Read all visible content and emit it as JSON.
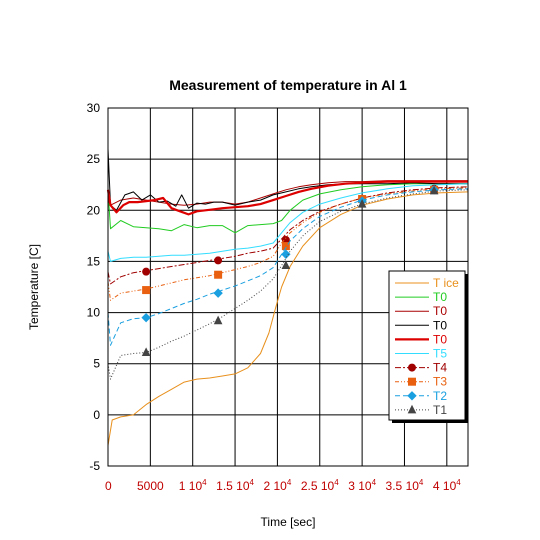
{
  "chart_data": {
    "type": "line",
    "title": "Measurement of temperature in Al 1",
    "xlabel": "Time [sec]",
    "ylabel": "Temperature [C]",
    "xlim": [
      0,
      42500
    ],
    "ylim": [
      -5,
      30
    ],
    "grid": true,
    "legend_position": "right",
    "x_ticks": [
      {
        "value": 0,
        "label": "0",
        "exp": ""
      },
      {
        "value": 5000,
        "label": "5000",
        "exp": ""
      },
      {
        "value": 10000,
        "label": "1 10",
        "exp": "4"
      },
      {
        "value": 15000,
        "label": "1.5 10",
        "exp": "4"
      },
      {
        "value": 20000,
        "label": "2 10",
        "exp": "4"
      },
      {
        "value": 25000,
        "label": "2.5 10",
        "exp": "4"
      },
      {
        "value": 30000,
        "label": "3 10",
        "exp": "4"
      },
      {
        "value": 35000,
        "label": "3.5 10",
        "exp": "4"
      },
      {
        "value": 40000,
        "label": "4 10",
        "exp": "4"
      }
    ],
    "y_ticks": [
      -5,
      0,
      5,
      10,
      15,
      20,
      25,
      30
    ],
    "series": [
      {
        "name": "T ice",
        "color": "#e8901c",
        "width": 1,
        "dash": "",
        "marker": "",
        "x": [
          0,
          500,
          1500,
          3000,
          4500,
          6000,
          7500,
          9000,
          10500,
          12000,
          13500,
          15000,
          16500,
          18000,
          19000,
          19800,
          20500,
          21500,
          23000,
          25000,
          27500,
          30000,
          33000,
          36000,
          39000,
          42500
        ],
        "y": [
          -3,
          -0.5,
          -0.2,
          0,
          1,
          1.8,
          2.5,
          3.2,
          3.5,
          3.6,
          3.8,
          4.0,
          4.6,
          6.0,
          8.0,
          10.5,
          12.5,
          14.5,
          16.5,
          18.3,
          19.6,
          20.5,
          21.1,
          21.5,
          21.7,
          21.8
        ]
      },
      {
        "name": "T0",
        "color": "#22cc22",
        "width": 1,
        "dash": "",
        "marker": "",
        "x": [
          0,
          300,
          1500,
          3000,
          4500,
          6000,
          7500,
          9000,
          10500,
          12000,
          13500,
          15000,
          16500,
          18000,
          19500,
          20500,
          21500,
          23000,
          25000,
          27500,
          30000,
          33000,
          36000,
          39000,
          42500
        ],
        "y": [
          22,
          18.2,
          19.0,
          18.4,
          18.3,
          18.2,
          18.0,
          18.6,
          18.3,
          18.5,
          18.5,
          17.8,
          18.5,
          18.6,
          18.7,
          19.0,
          20.0,
          21.0,
          21.6,
          22.0,
          22.3,
          22.5,
          22.6,
          22.6,
          22.6
        ]
      },
      {
        "name": "T0",
        "color": "#aa0000",
        "width": 1,
        "dash": "",
        "marker": "",
        "x": [
          0,
          300,
          1500,
          3000,
          4500,
          6000,
          7500,
          9000,
          10500,
          12000,
          13500,
          15000,
          16500,
          18000,
          19500,
          21000,
          22500,
          24000,
          26000,
          28000,
          30000,
          33000,
          36000,
          39000,
          42500
        ],
        "y": [
          21,
          20.5,
          21.0,
          21.2,
          21.0,
          20.8,
          20.6,
          20.5,
          20.6,
          20.8,
          20.8,
          20.6,
          20.8,
          21.2,
          21.6,
          22.0,
          22.3,
          22.5,
          22.7,
          22.8,
          22.8,
          22.9,
          22.9,
          22.9,
          22.9
        ]
      },
      {
        "name": "T0",
        "color": "#000000",
        "width": 1,
        "dash": "",
        "marker": "",
        "x": [
          0,
          300,
          1000,
          2000,
          3000,
          4000,
          5000,
          6000,
          7000,
          8000,
          8700,
          9500,
          10500,
          11500,
          12500,
          13500,
          15000,
          16500,
          18000,
          19500,
          21000,
          22500,
          24000,
          26000,
          28000,
          30000,
          33000,
          36000,
          39000,
          42500
        ],
        "y": [
          26,
          20.5,
          20.0,
          21.5,
          21.8,
          21.0,
          21.5,
          20.8,
          20.9,
          20.4,
          21.5,
          20.2,
          20.7,
          20.6,
          20.8,
          20.8,
          20.5,
          20.8,
          21.0,
          21.5,
          21.8,
          22.1,
          22.3,
          22.5,
          22.6,
          22.6,
          22.6,
          22.7,
          22.6,
          22.6
        ]
      },
      {
        "name": "T0",
        "color": "#dd0000",
        "width": 2.2,
        "dash": "",
        "marker": "",
        "x": [
          0,
          300,
          1000,
          1800,
          2500,
          3500,
          4500,
          5500,
          6500,
          7500,
          8500,
          9500,
          10500,
          11500,
          12500,
          13500,
          15000,
          16500,
          18000,
          19500,
          21000,
          22500,
          24000,
          26000,
          28000,
          30000,
          33000,
          36000,
          39000,
          42500
        ],
        "y": [
          22,
          20.5,
          19.8,
          20.5,
          20.8,
          20.8,
          20.9,
          21.0,
          21.2,
          20.2,
          19.9,
          19.6,
          19.9,
          20.0,
          20.1,
          20.2,
          20.3,
          20.4,
          20.6,
          21.0,
          21.4,
          21.8,
          22.1,
          22.4,
          22.6,
          22.7,
          22.8,
          22.8,
          22.8,
          22.8
        ]
      },
      {
        "name": "T5",
        "color": "#33ddff",
        "width": 1,
        "dash": "",
        "marker": "",
        "x": [
          0,
          300,
          1500,
          3000,
          4500,
          6000,
          7500,
          9000,
          10500,
          12000,
          13500,
          15000,
          16500,
          18000,
          19500,
          20500,
          21500,
          23000,
          25000,
          27500,
          30000,
          33000,
          36000,
          39000,
          42500
        ],
        "y": [
          16,
          15.0,
          15.3,
          15.4,
          15.4,
          15.5,
          15.6,
          15.6,
          15.7,
          15.8,
          16.0,
          16.2,
          16.3,
          16.5,
          16.8,
          17.8,
          18.8,
          19.8,
          20.6,
          21.2,
          21.7,
          22.1,
          22.4,
          22.5,
          22.6
        ]
      },
      {
        "name": "T4",
        "color": "#a00000",
        "width": 1,
        "dash": "6,2,2,2",
        "marker": "circle",
        "x": [
          0,
          300,
          1500,
          3000,
          4500,
          6000,
          7500,
          9000,
          10500,
          12000,
          13500,
          15000,
          16500,
          18000,
          19500,
          20500,
          21500,
          23000,
          25000,
          27500,
          30000,
          33000,
          36000,
          39000,
          42500
        ],
        "y": [
          14,
          12.8,
          13.5,
          13.9,
          14.1,
          14.3,
          14.5,
          14.7,
          14.9,
          15.1,
          15.3,
          15.5,
          15.8,
          16.0,
          16.3,
          17.2,
          18.1,
          19.0,
          19.9,
          20.6,
          21.2,
          21.7,
          22.0,
          22.2,
          22.3
        ],
        "marker_x": [
          4500,
          13000,
          21000,
          30000,
          38500
        ],
        "marker_y": [
          14.0,
          15.1,
          17.1,
          21.1,
          22.1
        ]
      },
      {
        "name": "T3",
        "color": "#e86010",
        "width": 1,
        "dash": "4,2,1,2,1,2",
        "marker": "square",
        "x": [
          0,
          300,
          1500,
          3000,
          4500,
          6000,
          7500,
          9000,
          10500,
          12000,
          13500,
          15000,
          16500,
          18000,
          19500,
          20500,
          21500,
          23000,
          25000,
          27500,
          30000,
          33000,
          36000,
          39000,
          42500
        ],
        "y": [
          13,
          11.2,
          11.9,
          12.1,
          12.3,
          12.6,
          12.9,
          13.2,
          13.4,
          13.6,
          13.9,
          14.2,
          14.5,
          14.9,
          15.5,
          16.8,
          17.8,
          18.8,
          19.8,
          20.6,
          21.2,
          21.6,
          21.9,
          22.1,
          22.2
        ],
        "marker_x": [
          4500,
          13000,
          21000,
          30000,
          38500
        ],
        "marker_y": [
          12.2,
          13.7,
          16.5,
          21.1,
          22.0
        ]
      },
      {
        "name": "T2",
        "color": "#1aa0e0",
        "width": 1,
        "dash": "5,3",
        "marker": "diamond",
        "x": [
          0,
          300,
          1500,
          3000,
          4500,
          6000,
          7500,
          9000,
          10500,
          12000,
          13500,
          15000,
          16500,
          18000,
          19500,
          20500,
          21500,
          23000,
          25000,
          27500,
          30000,
          33000,
          36000,
          39000,
          42500
        ],
        "y": [
          10,
          6.8,
          9.0,
          9.4,
          9.5,
          9.9,
          10.4,
          10.9,
          11.3,
          11.8,
          12.2,
          12.6,
          13.1,
          13.6,
          14.4,
          15.7,
          17.0,
          18.2,
          19.4,
          20.3,
          21.0,
          21.5,
          21.8,
          22.0,
          22.1
        ],
        "marker_x": [
          4500,
          13000,
          21000,
          30000,
          38500
        ],
        "marker_y": [
          9.5,
          11.9,
          15.7,
          20.9,
          22.0
        ]
      },
      {
        "name": "T1",
        "color": "#444444",
        "width": 1,
        "dash": "1,2",
        "marker": "triangle",
        "x": [
          0,
          300,
          1500,
          3000,
          4500,
          6000,
          7500,
          9000,
          10500,
          12000,
          13500,
          15000,
          16500,
          18000,
          19500,
          20500,
          21500,
          23000,
          25000,
          27500,
          30000,
          33000,
          36000,
          39000,
          42500
        ],
        "y": [
          5,
          3.5,
          5.8,
          6.0,
          6.1,
          6.6,
          7.2,
          7.7,
          8.3,
          8.9,
          9.6,
          10.4,
          11.2,
          12.1,
          13.3,
          14.6,
          16.0,
          17.5,
          18.9,
          19.9,
          20.6,
          21.2,
          21.6,
          21.9,
          22.0
        ],
        "marker_x": [
          4500,
          13000,
          21000,
          30000,
          38500
        ],
        "marker_y": [
          6.1,
          9.2,
          14.6,
          20.6,
          21.9
        ]
      }
    ]
  }
}
